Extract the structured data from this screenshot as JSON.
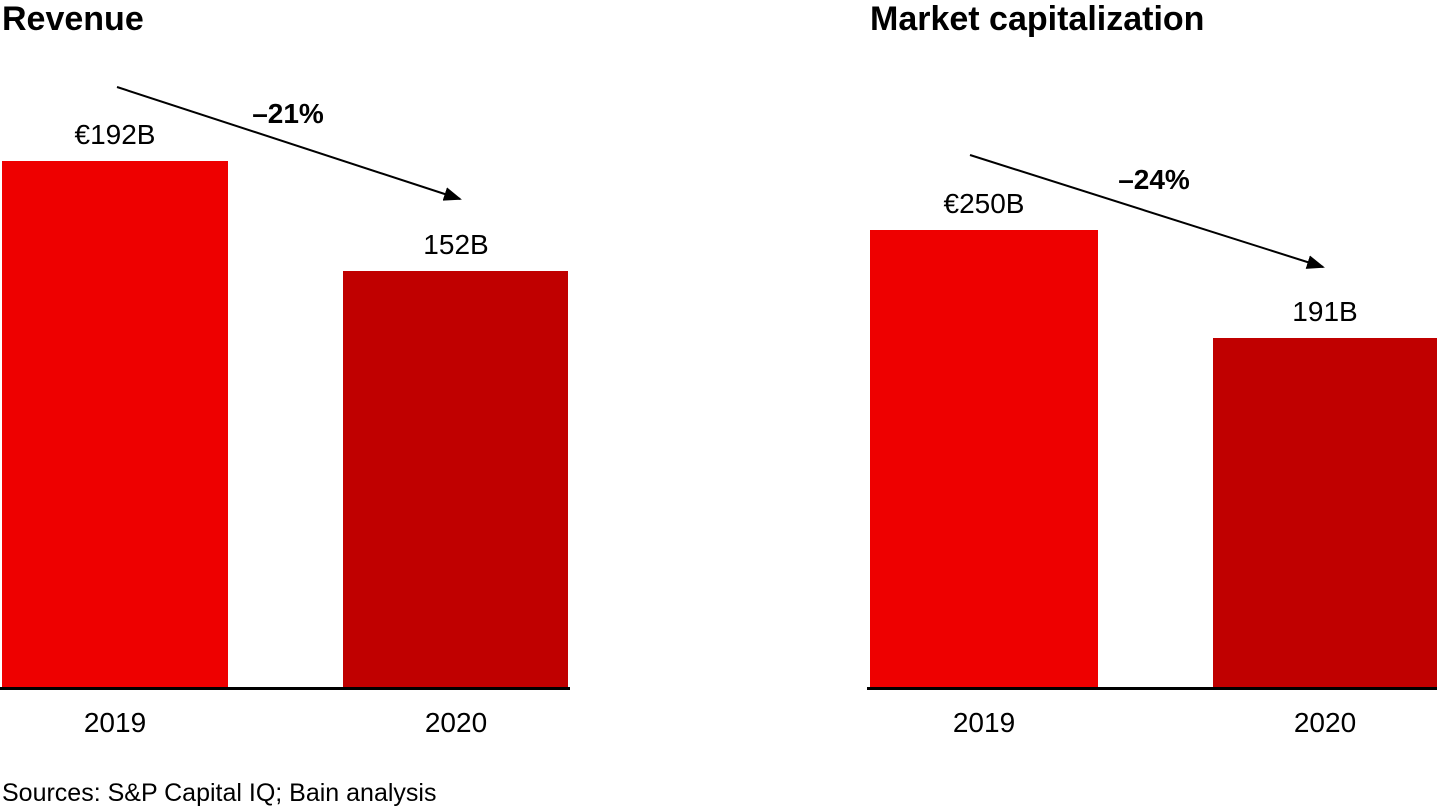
{
  "chart_data": [
    {
      "type": "bar",
      "title": "Revenue",
      "categories": [
        "2019",
        "2020"
      ],
      "values": [
        192,
        152
      ],
      "bar_labels": [
        "€192B",
        "152B"
      ],
      "change_label": "–21%",
      "ylim": [
        0,
        192
      ],
      "grid": false,
      "legend": false,
      "bar_colors": [
        "#ee0000",
        "#c00000"
      ]
    },
    {
      "type": "bar",
      "title": "Market capitalization",
      "categories": [
        "2019",
        "2020"
      ],
      "values": [
        250,
        191
      ],
      "bar_labels": [
        "€250B",
        "191B"
      ],
      "change_label": "–24%",
      "ylim": [
        0,
        250
      ],
      "grid": false,
      "legend": false,
      "bar_colors": [
        "#ee0000",
        "#c00000"
      ]
    }
  ],
  "footer": {
    "sources": "Sources: S&P Capital IQ; Bain analysis"
  },
  "colors": {
    "background": "#ffffff",
    "axis": "#000000",
    "text": "#000000",
    "bar_bright": "#ee0000",
    "bar_dark": "#c00000"
  }
}
